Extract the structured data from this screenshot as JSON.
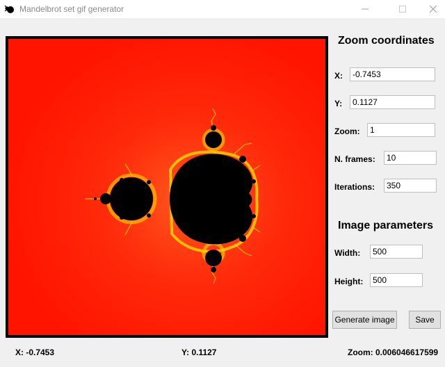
{
  "window": {
    "title": "Mandelbrot set gif generator",
    "controls": {
      "minimize": "—",
      "maximize": "☐",
      "close": "✕"
    }
  },
  "zoom_section": {
    "title": "Zoom coordinates",
    "x_label": "X:",
    "x_value": "-0.7453",
    "y_label": "Y:",
    "y_value": "0.1127",
    "zoom_label": "Zoom:",
    "zoom_value": "1",
    "frames_label": "N. frames:",
    "frames_value": "10",
    "iterations_label": "Iterations:",
    "iterations_value": "350"
  },
  "image_section": {
    "title": "Image parameters",
    "width_label": "Width:",
    "width_value": "500",
    "height_label": "Height:",
    "height_value": "500"
  },
  "buttons": {
    "generate": "Generate image",
    "save": "Save"
  },
  "status": {
    "x": "X: -0.7453",
    "y": "Y: 0.1127",
    "zoom": "Zoom: 0.006046617599"
  },
  "colors": {
    "background_red": "#ff1a00",
    "set_black": "#000000",
    "edge_yellow": "#ffe100",
    "window_bg": "#f0f0f0"
  },
  "icons": {
    "app": "bug-icon"
  }
}
